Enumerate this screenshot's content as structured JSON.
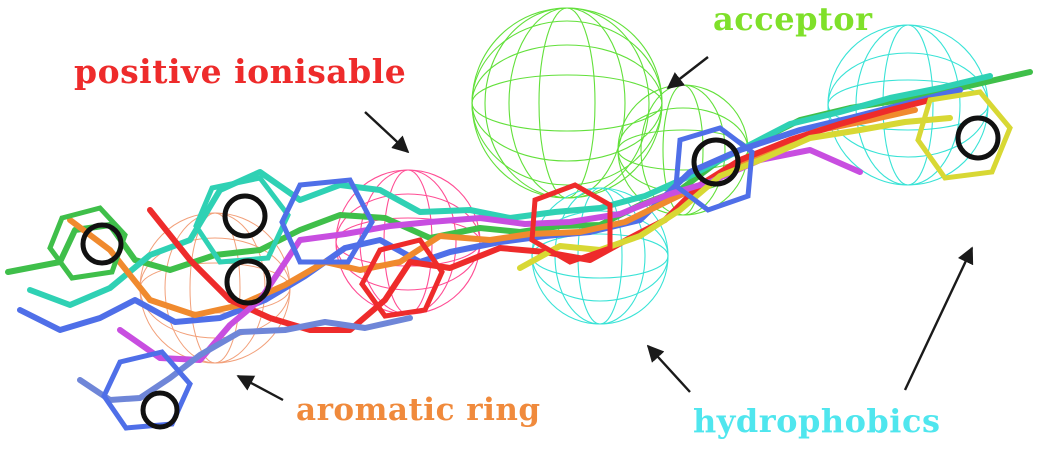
{
  "labels": {
    "positive_ionisable": "positive ionisable",
    "acceptor": "acceptor",
    "aromatic_ring": "aromatic ring",
    "hydrophobics": "hydrophobics"
  },
  "colors": {
    "positive_ionisable": "#ee2b2b",
    "acceptor": "#7fe02a",
    "aromatic_ring": "#f08a3c",
    "hydrophobics": "#4fe6ee",
    "arrow": "#1a1a1a"
  }
}
